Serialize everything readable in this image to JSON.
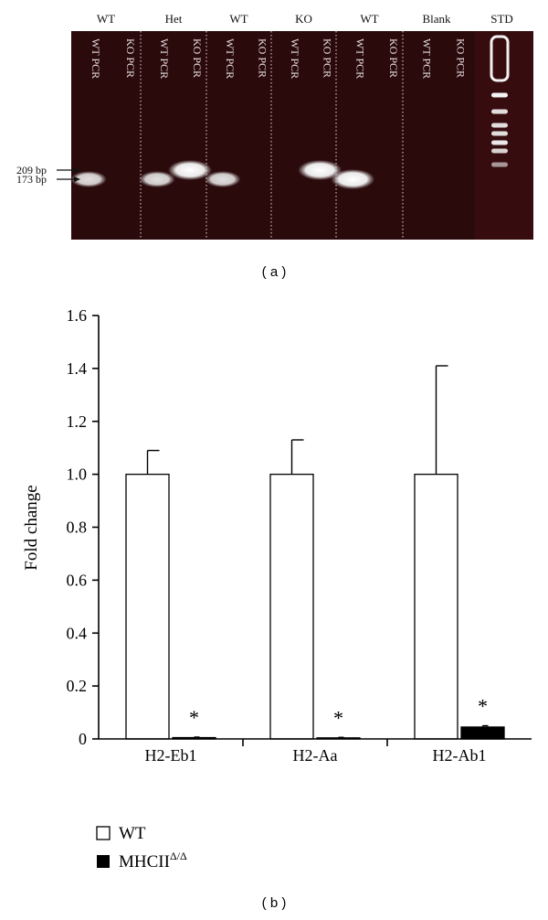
{
  "gel": {
    "panel_label": "( a )",
    "groups": [
      {
        "label": "WT",
        "lanes": [
          "WT PCR",
          "KO PCR"
        ],
        "bands": [
          {
            "lane": 0,
            "size_bp": 173,
            "intensity": 0.7
          }
        ]
      },
      {
        "label": "Het",
        "lanes": [
          "WT PCR",
          "KO PCR"
        ],
        "bands": [
          {
            "lane": 0,
            "size_bp": 173,
            "intensity": 0.7
          },
          {
            "lane": 1,
            "size_bp": 209,
            "intensity": 1.0
          }
        ]
      },
      {
        "label": "WT",
        "lanes": [
          "WT PCR",
          "KO PCR"
        ],
        "bands": [
          {
            "lane": 0,
            "size_bp": 173,
            "intensity": 0.7
          }
        ]
      },
      {
        "label": "KO",
        "lanes": [
          "WT PCR",
          "KO PCR"
        ],
        "bands": [
          {
            "lane": 1,
            "size_bp": 209,
            "intensity": 1.0
          }
        ]
      },
      {
        "label": "WT",
        "lanes": [
          "WT PCR",
          "KO PCR"
        ],
        "bands": [
          {
            "lane": 0,
            "size_bp": 173,
            "intensity": 1.0
          }
        ]
      },
      {
        "label": "Blank",
        "lanes": [
          "WT PCR",
          "KO PCR"
        ],
        "bands": []
      },
      {
        "label": "STD",
        "lanes": [],
        "bands": []
      }
    ],
    "markers": [
      {
        "label": "209 bp",
        "size_bp": 209
      },
      {
        "label": "173 bp",
        "size_bp": 173
      }
    ]
  },
  "chart_panel_label": "( b )",
  "chart_data": {
    "type": "bar",
    "categories": [
      "H2-Eb1",
      "H2-Aa",
      "H2-Ab1"
    ],
    "series": [
      {
        "name": "WT",
        "values": [
          1.0,
          1.0,
          1.0
        ],
        "error": [
          0.09,
          0.13,
          0.41
        ],
        "color": "#ffffff"
      },
      {
        "name": "MHCII",
        "name_sup": "Δ/Δ",
        "values": [
          0.005,
          0.004,
          0.045
        ],
        "error": [
          0.002,
          0.002,
          0.005
        ],
        "color": "#000000"
      }
    ],
    "significance": [
      "*",
      "*",
      "*"
    ],
    "ylabel": "Fold change",
    "ylim": [
      0,
      1.6
    ],
    "yticks": [
      "0",
      "0.2",
      "0.4",
      "0.6",
      "0.8",
      "1.0",
      "1.2",
      "1.4",
      "1.6"
    ],
    "grid": false,
    "legend_position": "bottom-left"
  }
}
